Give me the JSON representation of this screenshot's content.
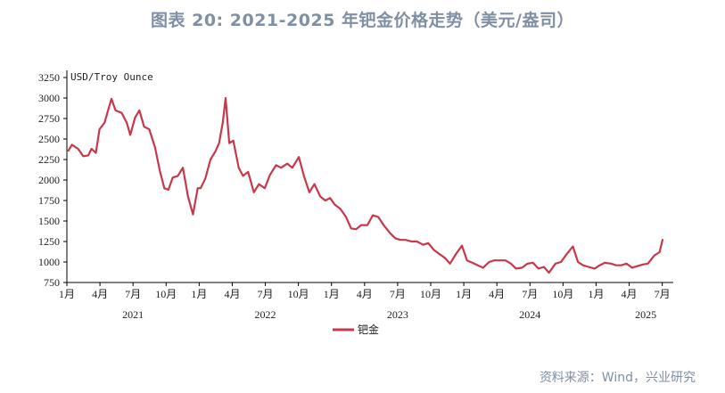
{
  "title": "图表 20: 2021-2025 年钯金价格走势（美元/盎司）",
  "source": "资料来源：Wind，兴业研究",
  "chart_data": {
    "type": "line",
    "unit_label": "USD/Troy Ounce",
    "ylim": [
      750,
      3250
    ],
    "y_ticks": [
      750,
      1000,
      1250,
      1500,
      1750,
      2000,
      2250,
      2500,
      2750,
      3000,
      3250
    ],
    "x_ticks": [
      {
        "label": "1月",
        "t": 0
      },
      {
        "label": "4月",
        "t": 3
      },
      {
        "label": "7月",
        "t": 6
      },
      {
        "label": "10月",
        "t": 9
      },
      {
        "label": "1月",
        "t": 12
      },
      {
        "label": "4月",
        "t": 15
      },
      {
        "label": "7月",
        "t": 18
      },
      {
        "label": "10月",
        "t": 21
      },
      {
        "label": "1月",
        "t": 24
      },
      {
        "label": "4月",
        "t": 27
      },
      {
        "label": "7月",
        "t": 30
      },
      {
        "label": "10月",
        "t": 33
      },
      {
        "label": "1月",
        "t": 36
      },
      {
        "label": "4月",
        "t": 39
      },
      {
        "label": "7月",
        "t": 42
      },
      {
        "label": "10月",
        "t": 45
      },
      {
        "label": "1月",
        "t": 48
      },
      {
        "label": "4月",
        "t": 51
      },
      {
        "label": "7月",
        "t": 54
      }
    ],
    "years": [
      {
        "label": "2021",
        "t": 6
      },
      {
        "label": "2022",
        "t": 18
      },
      {
        "label": "2023",
        "t": 30
      },
      {
        "label": "2024",
        "t": 42
      },
      {
        "label": "2025",
        "t": 52.5
      }
    ],
    "line_color": "#c8374a",
    "series": [
      {
        "name": "钯金",
        "x": [
          "2021-01-04",
          "2021-01-15",
          "2021-02-01",
          "2021-02-15",
          "2021-03-01",
          "2021-03-10",
          "2021-03-22",
          "2021-04-01",
          "2021-04-15",
          "2021-04-26",
          "2021-05-04",
          "2021-05-15",
          "2021-06-01",
          "2021-06-15",
          "2021-06-25",
          "2021-07-08",
          "2021-07-20",
          "2021-08-02",
          "2021-08-16",
          "2021-09-01",
          "2021-09-15",
          "2021-09-27",
          "2021-10-08",
          "2021-10-20",
          "2021-11-03",
          "2021-11-17",
          "2021-12-01",
          "2021-12-15",
          "2021-12-28",
          "2022-01-05",
          "2022-01-18",
          "2022-02-01",
          "2022-02-15",
          "2022-02-25",
          "2022-03-07",
          "2022-03-15",
          "2022-03-25",
          "2022-04-05",
          "2022-04-20",
          "2022-05-02",
          "2022-05-16",
          "2022-06-01",
          "2022-06-15",
          "2022-07-01",
          "2022-07-15",
          "2022-08-01",
          "2022-08-15",
          "2022-09-01",
          "2022-09-15",
          "2022-10-03",
          "2022-10-17",
          "2022-11-01",
          "2022-11-15",
          "2022-12-01",
          "2022-12-15",
          "2022-12-28",
          "2023-01-10",
          "2023-01-25",
          "2023-02-10",
          "2023-02-24",
          "2023-03-10",
          "2023-03-24",
          "2023-04-10",
          "2023-04-25",
          "2023-05-10",
          "2023-05-25",
          "2023-06-12",
          "2023-06-26",
          "2023-07-10",
          "2023-07-25",
          "2023-08-10",
          "2023-08-25",
          "2023-09-11",
          "2023-09-25",
          "2023-10-10",
          "2023-10-25",
          "2023-11-10",
          "2023-11-24",
          "2023-12-11",
          "2023-12-27",
          "2024-01-10",
          "2024-01-25",
          "2024-02-09",
          "2024-02-23",
          "2024-03-11",
          "2024-03-25",
          "2024-04-10",
          "2024-04-25",
          "2024-05-10",
          "2024-05-24",
          "2024-06-10",
          "2024-06-25",
          "2024-07-10",
          "2024-07-25",
          "2024-08-09",
          "2024-08-23",
          "2024-09-10",
          "2024-09-25",
          "2024-10-10",
          "2024-10-28",
          "2024-11-11",
          "2024-11-25",
          "2024-12-10",
          "2024-12-27",
          "2025-01-10",
          "2025-01-24",
          "2025-02-10",
          "2025-02-24",
          "2025-03-10",
          "2025-03-25",
          "2025-04-09",
          "2025-04-24",
          "2025-05-09",
          "2025-05-23",
          "2025-06-10",
          "2025-06-24",
          "2025-07-03"
        ],
        "values": [
          2350,
          2430,
          2380,
          2290,
          2300,
          2380,
          2330,
          2620,
          2700,
          2870,
          2990,
          2850,
          2820,
          2700,
          2550,
          2760,
          2850,
          2650,
          2620,
          2400,
          2100,
          1900,
          1880,
          2030,
          2050,
          2150,
          1800,
          1580,
          1900,
          1900,
          2020,
          2250,
          2350,
          2450,
          2700,
          3000,
          2450,
          2480,
          2150,
          2050,
          2100,
          1850,
          1950,
          1900,
          2060,
          2180,
          2150,
          2200,
          2150,
          2280,
          2050,
          1850,
          1950,
          1800,
          1750,
          1780,
          1700,
          1650,
          1550,
          1410,
          1400,
          1450,
          1450,
          1570,
          1550,
          1450,
          1350,
          1290,
          1270,
          1270,
          1250,
          1250,
          1210,
          1230,
          1150,
          1100,
          1050,
          980,
          1100,
          1200,
          1020,
          990,
          960,
          930,
          1000,
          1020,
          1020,
          1020,
          980,
          920,
          930,
          980,
          990,
          920,
          940,
          870,
          980,
          1000,
          1090,
          1190,
          1000,
          960,
          940,
          920,
          960,
          990,
          980,
          960,
          960,
          980,
          930,
          950,
          970,
          980,
          1080,
          1120,
          1280
        ]
      }
    ]
  }
}
